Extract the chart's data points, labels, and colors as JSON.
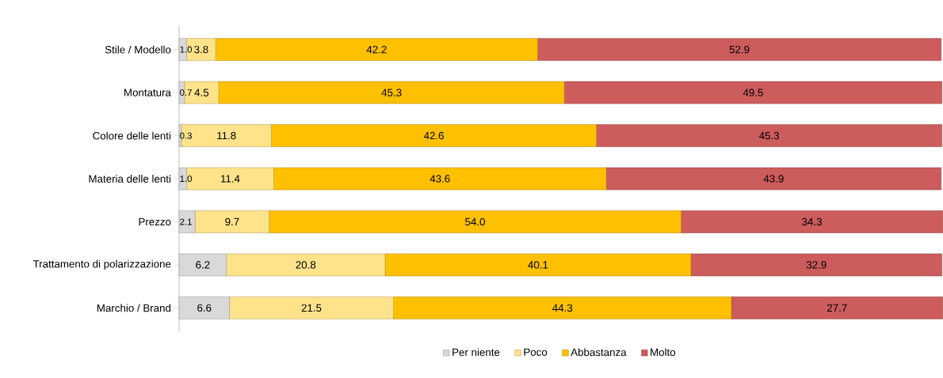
{
  "chart_data": {
    "type": "bar",
    "orientation": "horizontal",
    "stacked": true,
    "legend": "bottom",
    "tick_labels": "y",
    "xlim": [
      0,
      100
    ],
    "categories": [
      "Stile / Modello",
      "Montatura",
      "Colore delle lenti",
      "Materia delle lenti",
      "Prezzo",
      "Trattamento di polarizzazione",
      "Marchio / Brand"
    ],
    "series": [
      {
        "name": "Per niente",
        "color": "#d9d9d9",
        "values": [
          1.0,
          0.7,
          0.3,
          1.0,
          2.1,
          6.2,
          6.6
        ],
        "value_labels": [
          "1.0",
          "0.7",
          "0.3",
          "1.0",
          "2.1",
          "6.2",
          "6.6"
        ]
      },
      {
        "name": "Poco",
        "color": "#ffe38a",
        "values": [
          3.8,
          4.5,
          11.8,
          11.4,
          9.7,
          20.8,
          21.5
        ],
        "value_labels": [
          "3.8",
          "4.5",
          "11.8",
          "11.4",
          "9.7",
          "20.8",
          "21.5"
        ]
      },
      {
        "name": "Abbastanza",
        "color": "#ffc000",
        "values": [
          42.2,
          45.3,
          42.6,
          43.6,
          54.0,
          40.1,
          44.3
        ],
        "value_labels": [
          "42.2",
          "45.3",
          "42.6",
          "43.6",
          "54.0",
          "40.1",
          "44.3"
        ]
      },
      {
        "name": "Molto",
        "color": "#cd5c5c",
        "values": [
          52.9,
          49.5,
          45.3,
          43.9,
          34.3,
          32.9,
          27.7
        ],
        "value_labels": [
          "52.9",
          "49.5",
          "45.3",
          "43.9",
          "34.3",
          "32.9",
          "27.7"
        ]
      }
    ]
  }
}
